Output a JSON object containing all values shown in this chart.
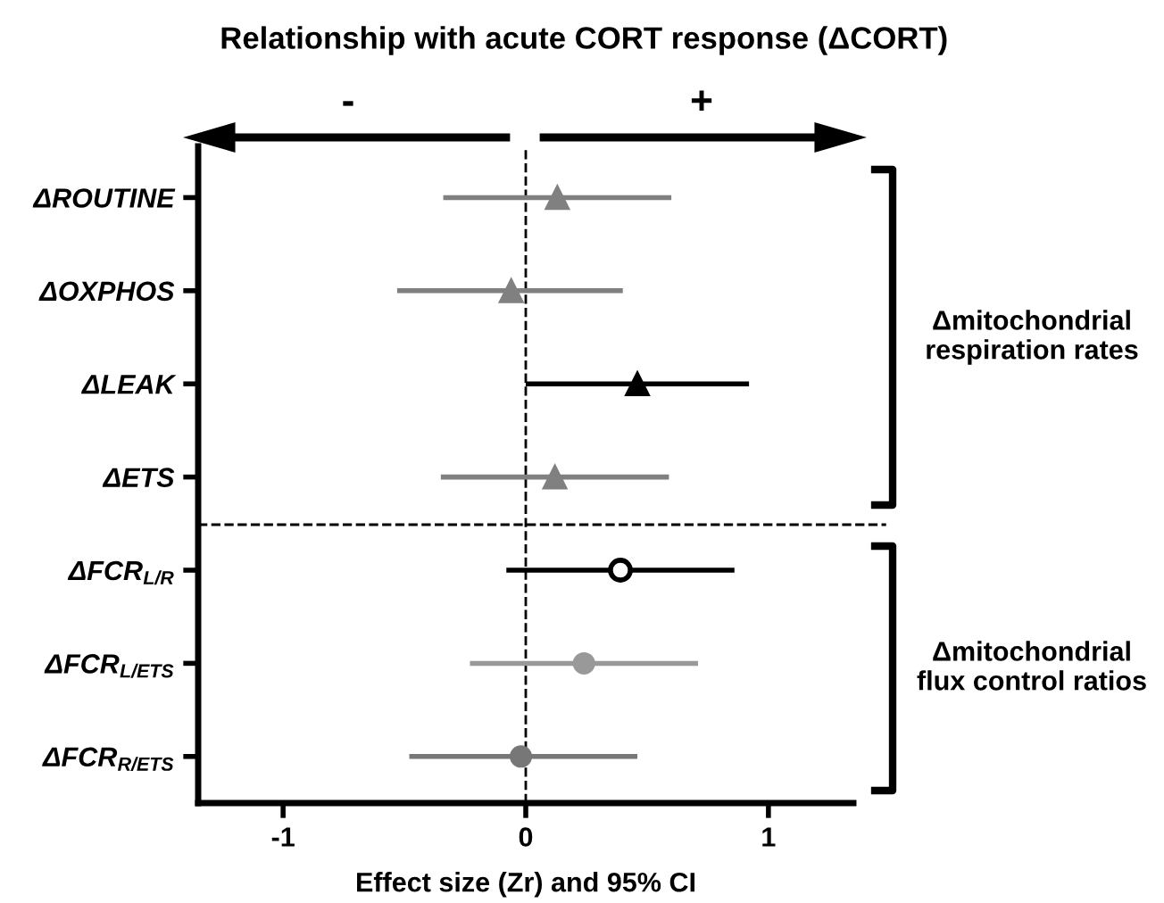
{
  "chart_data": {
    "type": "scatter",
    "orientation": "horizontal",
    "title": "Relationship with acute CORT response (ΔCORT)",
    "xlabel": "Effect size (Zr) and 95% CI",
    "categories": [
      "ΔROUTINE",
      "ΔOXPHOS",
      "ΔLEAK",
      "ΔETS",
      "ΔFCR$_{L/R}$",
      "ΔFCR$_{L/ETS}$",
      "ΔFCR$_{R/ETS}$"
    ],
    "series": [
      {
        "color": "#808080",
        "marker": "triangle",
        "values": [
          0.13,
          -0.06,
          null,
          0.12,
          null,
          null,
          null
        ],
        "errors": [
          [
            -0.34,
            0.6
          ],
          [
            -0.53,
            0.4
          ],
          null,
          [
            -0.35,
            0.59
          ],
          null,
          null,
          null
        ]
      },
      {
        "color": "#000000",
        "marker": "triangle",
        "values": [
          null,
          null,
          0.46,
          null,
          null,
          null,
          null
        ],
        "errors": [
          null,
          null,
          [
            0.0,
            0.92
          ],
          null,
          null,
          null,
          null
        ]
      },
      {
        "color": "#000000",
        "colors": [
          null,
          null,
          null,
          null,
          "#ffffff",
          null,
          null
        ],
        "marker": "circle",
        "values": [
          null,
          null,
          null,
          null,
          0.39,
          null,
          null
        ],
        "errors": [
          null,
          null,
          null,
          null,
          [
            -0.08,
            0.86
          ],
          null,
          null
        ]
      },
      {
        "color": "#999999",
        "marker": "circle",
        "values": [
          null,
          null,
          null,
          null,
          null,
          0.24,
          null
        ],
        "errors": [
          null,
          null,
          null,
          null,
          null,
          [
            -0.23,
            0.71
          ],
          null
        ]
      },
      {
        "color": "#777777",
        "marker": "circle",
        "values": [
          null,
          null,
          null,
          null,
          null,
          null,
          -0.02
        ],
        "errors": [
          null,
          null,
          null,
          null,
          null,
          null,
          [
            -0.48,
            0.46
          ]
        ]
      }
    ],
    "xlim": [
      -1.35,
      1.35
    ],
    "xticks": [
      -1,
      0,
      1
    ],
    "ref_lines": [
      {
        "axis": "x",
        "value": 0,
        "line_style": "dashed",
        "color": "#000000"
      }
    ],
    "annotations": [
      "-",
      "+",
      "Δmitochondrial\nrespiration rates",
      "Δmitochondrial\nflux control ratios"
    ],
    "grid": false,
    "legend": false
  }
}
